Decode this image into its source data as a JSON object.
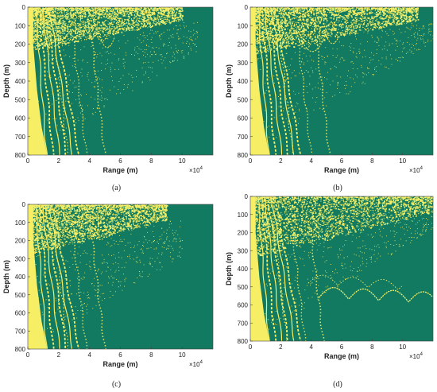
{
  "figure": {
    "colors": {
      "background": "#117a60",
      "foreground": "#f6ef66"
    }
  },
  "chart_data": [
    {
      "type": "heatmap",
      "panel_label": "(a)",
      "xlabel": "Range (m)",
      "ylabel": "Depth (m)",
      "x_multiplier": "×10",
      "x_multiplier_exponent": "4",
      "xlim": [
        0,
        12
      ],
      "ylim": [
        800,
        0
      ],
      "x_ticks": [
        0,
        2,
        4,
        6,
        8,
        10
      ],
      "y_ticks": [
        0,
        100,
        200,
        300,
        400,
        500,
        600,
        700,
        800
      ],
      "near_surface_depth_max": 220,
      "far_range_max": 10,
      "second_caustic_range": 4.8,
      "far_ripples": false
    },
    {
      "type": "heatmap",
      "panel_label": "(b)",
      "xlabel": "Range (m)",
      "ylabel": "Depth (m)",
      "x_multiplier": "×10",
      "x_multiplier_exponent": "4",
      "xlim": [
        0,
        12
      ],
      "ylim": [
        800,
        0
      ],
      "x_ticks": [
        0,
        2,
        4,
        6,
        8,
        10
      ],
      "y_ticks": [
        0,
        100,
        200,
        300,
        400,
        500,
        600,
        700,
        800
      ],
      "near_surface_depth_max": 240,
      "far_range_max": 11,
      "second_caustic_range": 5.0,
      "far_ripples": false
    },
    {
      "type": "heatmap",
      "panel_label": "(c)",
      "xlabel": "Range (m)",
      "ylabel": "Depth (m)",
      "x_multiplier": "×10",
      "x_multiplier_exponent": "4",
      "xlim": [
        0,
        12
      ],
      "ylim": [
        800,
        0
      ],
      "x_ticks": [
        0,
        2,
        4,
        6,
        8,
        10
      ],
      "y_ticks": [
        0,
        100,
        200,
        300,
        400,
        500,
        600,
        700,
        800
      ],
      "near_surface_depth_max": 260,
      "far_range_max": 9,
      "second_caustic_range": 4.8,
      "far_ripples": false
    },
    {
      "type": "heatmap",
      "panel_label": "(d)",
      "xlabel": "Range (m)",
      "ylabel": "Depth (m)",
      "x_multiplier": "×10",
      "x_multiplier_exponent": "4",
      "xlim": [
        0,
        12
      ],
      "ylim": [
        800,
        0
      ],
      "x_ticks": [
        0,
        2,
        4,
        6,
        8,
        10
      ],
      "y_ticks": [
        0,
        100,
        200,
        300,
        400,
        500,
        600,
        700,
        800
      ],
      "near_surface_depth_max": 320,
      "far_range_max": 12,
      "second_caustic_range": 4.6,
      "far_ripples": true
    }
  ]
}
